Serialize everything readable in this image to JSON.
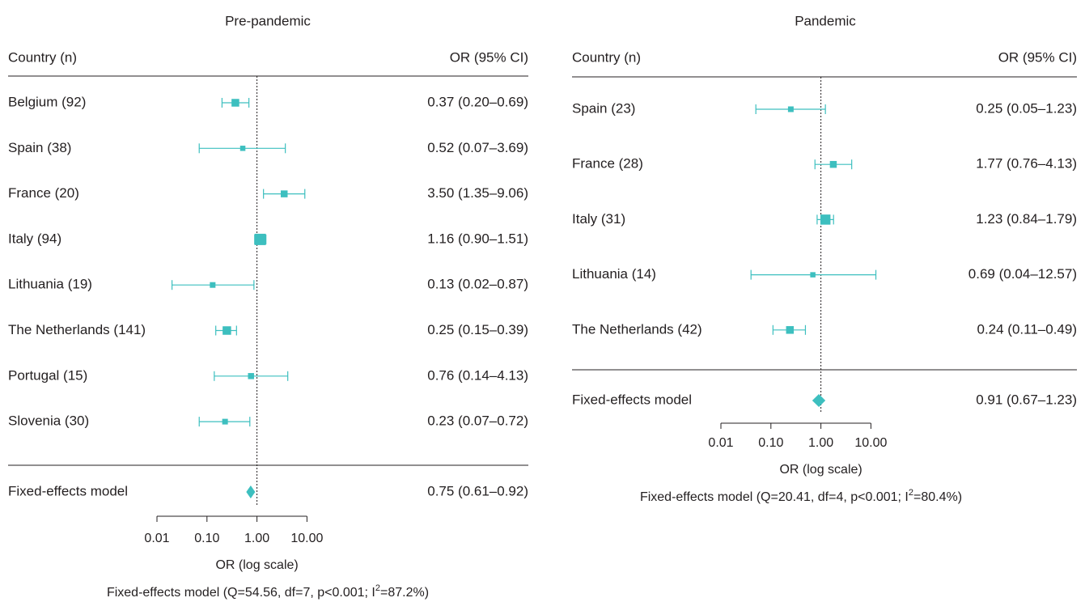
{
  "chart_data": [
    {
      "type": "forest",
      "title": "Pre-pandemic",
      "header_left": "Country (n)",
      "header_right": "OR (95% CI)",
      "rows": [
        {
          "label": "Belgium (92)",
          "or": 0.37,
          "lo": 0.2,
          "hi": 0.69,
          "text": "0.37 (0.20–0.69)",
          "weight": 0.55
        },
        {
          "label": "Spain (38)",
          "or": 0.52,
          "lo": 0.07,
          "hi": 3.69,
          "text": "0.52 (0.07–3.69)",
          "weight": 0.25
        },
        {
          "label": "France (20)",
          "or": 3.5,
          "lo": 1.35,
          "hi": 9.06,
          "text": "3.50 (1.35–9.06)",
          "weight": 0.45
        },
        {
          "label": "Italy (94)",
          "or": 1.16,
          "lo": 0.9,
          "hi": 1.51,
          "text": "1.16 (0.90–1.51)",
          "weight": 1.0
        },
        {
          "label": "Lithuania (19)",
          "or": 0.13,
          "lo": 0.02,
          "hi": 0.87,
          "text": "0.13 (0.02–0.87)",
          "weight": 0.3
        },
        {
          "label": "The Netherlands (141)",
          "or": 0.25,
          "lo": 0.15,
          "hi": 0.39,
          "text": "0.25 (0.15–0.39)",
          "weight": 0.65
        },
        {
          "label": "Portugal (15)",
          "or": 0.76,
          "lo": 0.14,
          "hi": 4.13,
          "text": "0.76 (0.14–4.13)",
          "weight": 0.35
        },
        {
          "label": "Slovenia (30)",
          "or": 0.23,
          "lo": 0.07,
          "hi": 0.72,
          "text": "0.23 (0.07–0.72)",
          "weight": 0.3
        }
      ],
      "summary": {
        "label": "Fixed-effects model",
        "or": 0.75,
        "lo": 0.61,
        "hi": 0.92,
        "text": "0.75 (0.61–0.92)"
      },
      "x_ticks": [
        "0.01",
        "0.10",
        "1.00",
        "10.00"
      ],
      "x_tick_values": [
        0.01,
        0.1,
        1,
        10
      ],
      "xlabel": "OR (log scale)",
      "x_scale": "log",
      "reference_line": 1,
      "footnote_pre": "Fixed-effects model (Q=54.56, df=7, p<0.001; I",
      "footnote_sup": "2",
      "footnote_post": "=87.2%)",
      "color": "#3dbfbf"
    },
    {
      "type": "forest",
      "title": "Pandemic",
      "header_left": "Country (n)",
      "header_right": "OR (95% CI)",
      "rows": [
        {
          "label": "Spain (23)",
          "or": 0.25,
          "lo": 0.05,
          "hi": 1.23,
          "text": "0.25 (0.05–1.23)",
          "weight": 0.3
        },
        {
          "label": "France (28)",
          "or": 1.77,
          "lo": 0.76,
          "hi": 4.13,
          "text": "1.77 (0.76–4.13)",
          "weight": 0.45
        },
        {
          "label": "Italy (31)",
          "or": 1.23,
          "lo": 0.84,
          "hi": 1.79,
          "text": "1.23 (0.84–1.79)",
          "weight": 0.85
        },
        {
          "label": "Lithuania (14)",
          "or": 0.69,
          "lo": 0.04,
          "hi": 12.57,
          "text": "0.69 (0.04–12.57)",
          "weight": 0.25
        },
        {
          "label": "The Netherlands (42)",
          "or": 0.24,
          "lo": 0.11,
          "hi": 0.49,
          "text": "0.24 (0.11–0.49)",
          "weight": 0.55
        }
      ],
      "summary": {
        "label": "Fixed-effects model",
        "or": 0.91,
        "lo": 0.67,
        "hi": 1.23,
        "text": "0.91 (0.67–1.23)"
      },
      "x_ticks": [
        "0.01",
        "0.10",
        "1.00",
        "10.00"
      ],
      "x_tick_values": [
        0.01,
        0.1,
        1,
        10
      ],
      "xlabel": "OR (log scale)",
      "x_scale": "log",
      "reference_line": 1,
      "footnote_pre": "Fixed-effects model (Q=20.41, df=4, p<0.001; I",
      "footnote_sup": "2",
      "footnote_post": "=80.4%)",
      "color": "#3dbfbf"
    }
  ]
}
